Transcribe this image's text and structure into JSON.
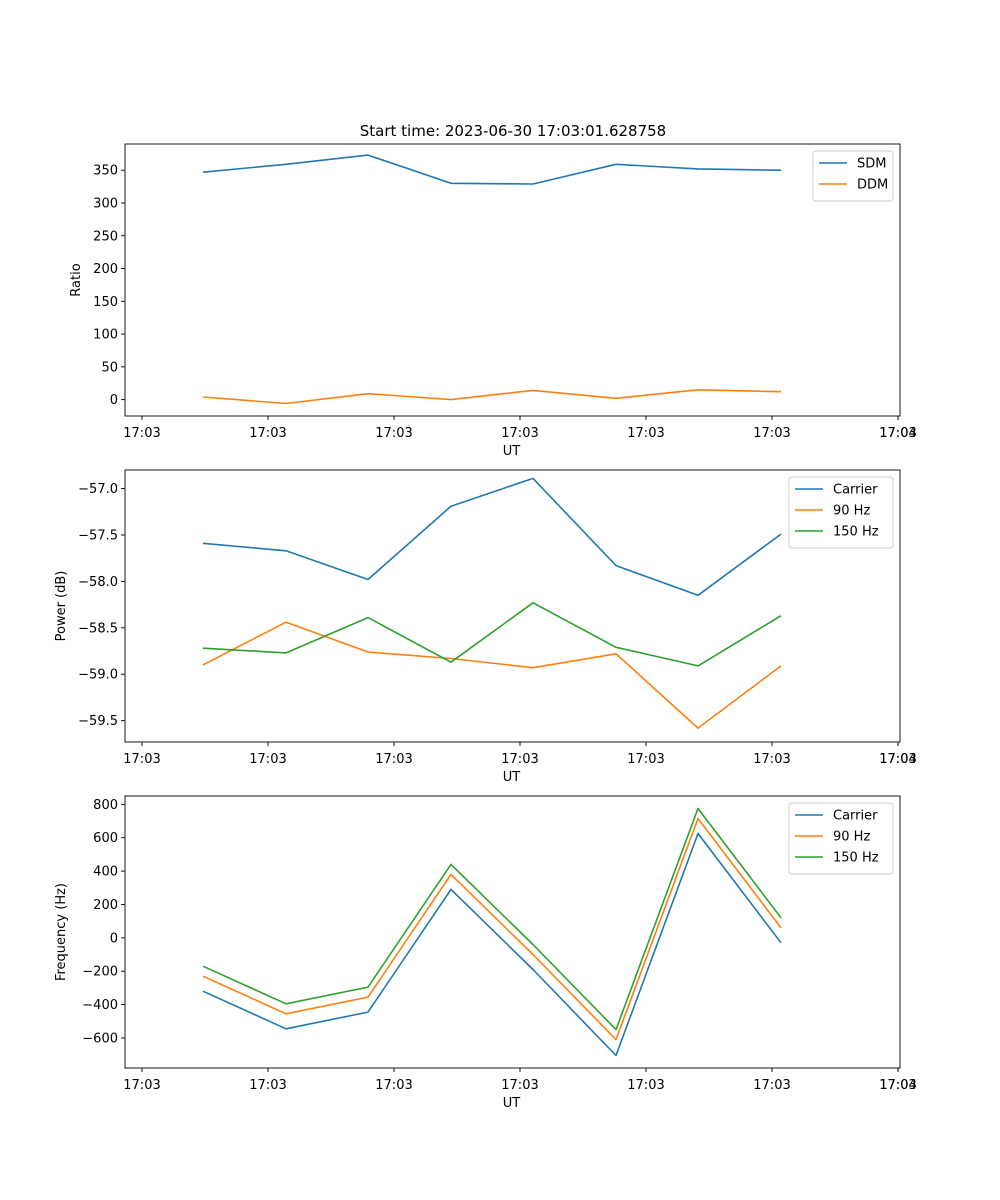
{
  "title": "Start time: 2023-06-30 17:03:01.628758",
  "colors": {
    "c0": "#1f77b4",
    "c1": "#ff7f0e",
    "c2": "#2ca02c"
  },
  "chart_data": [
    {
      "type": "line",
      "title": "Start time: 2023-06-30 17:03:01.628758",
      "xlabel": "UT",
      "ylabel": "Ratio",
      "x_tick_labels": [
        "17:03",
        "17:03",
        "17:03",
        "17:03",
        "17:03",
        "17:03",
        "17:03"
      ],
      "ylim": [
        -25,
        390
      ],
      "y_ticks": [
        0,
        50,
        100,
        150,
        200,
        250,
        300,
        350
      ],
      "y_tick_labels": [
        "0",
        "50",
        "100",
        "150",
        "200",
        "250",
        "300",
        "350"
      ],
      "legend": "top-right",
      "grid": false,
      "series": [
        {
          "name": "SDM",
          "color": "#1f77b4",
          "values": [
            347,
            359,
            373,
            330,
            329,
            359,
            352,
            350
          ]
        },
        {
          "name": "DDM",
          "color": "#ff7f0e",
          "values": [
            4,
            -6,
            9,
            0,
            14,
            2,
            15,
            12
          ]
        }
      ]
    },
    {
      "type": "line",
      "title": "",
      "xlabel": "UT",
      "ylabel": "Power (dB)",
      "x_tick_labels": [
        "17:03",
        "17:03",
        "17:03",
        "17:03",
        "17:03",
        "17:03",
        "17:03"
      ],
      "ylim": [
        -59.73,
        -56.8
      ],
      "y_ticks": [
        -59.5,
        -59.0,
        -58.5,
        -58.0,
        -57.5,
        -57.0
      ],
      "y_tick_labels": [
        "−59.5",
        "−59.0",
        "−58.5",
        "−58.0",
        "−57.5",
        "−57.0"
      ],
      "legend": "top-right",
      "grid": false,
      "series": [
        {
          "name": "Carrier",
          "color": "#1f77b4",
          "values": [
            -57.59,
            -57.67,
            -57.98,
            -57.19,
            -56.89,
            -57.83,
            -58.15,
            -57.49
          ]
        },
        {
          "name": "90 Hz",
          "color": "#ff7f0e",
          "values": [
            -58.9,
            -58.44,
            -58.76,
            -58.83,
            -58.93,
            -58.78,
            -59.58,
            -58.91
          ]
        },
        {
          "name": "150 Hz",
          "color": "#2ca02c",
          "values": [
            -58.72,
            -58.77,
            -58.39,
            -58.87,
            -58.23,
            -58.71,
            -58.91,
            -58.37
          ]
        }
      ]
    },
    {
      "type": "line",
      "title": "",
      "xlabel": "UT",
      "ylabel": "Frequency (Hz)",
      "x_tick_labels": [
        "17:03",
        "17:03",
        "17:03",
        "17:03",
        "17:03",
        "17:03",
        "17:03"
      ],
      "ylim": [
        -780,
        850
      ],
      "y_ticks": [
        -600,
        -400,
        -200,
        0,
        200,
        400,
        600,
        800
      ],
      "y_tick_labels": [
        "−600",
        "−400",
        "−200",
        "0",
        "200",
        "400",
        "600",
        "800"
      ],
      "legend": "top-right",
      "grid": false,
      "series": [
        {
          "name": "Carrier",
          "color": "#1f77b4",
          "values": [
            -320,
            -545,
            -445,
            290,
            -190,
            -705,
            625,
            -30
          ]
        },
        {
          "name": "90 Hz",
          "color": "#ff7f0e",
          "values": [
            -230,
            -455,
            -355,
            380,
            -100,
            -610,
            715,
            60
          ]
        },
        {
          "name": "150 Hz",
          "color": "#2ca02c",
          "values": [
            -170,
            -395,
            -295,
            440,
            -40,
            -550,
            775,
            120
          ]
        }
      ]
    }
  ]
}
